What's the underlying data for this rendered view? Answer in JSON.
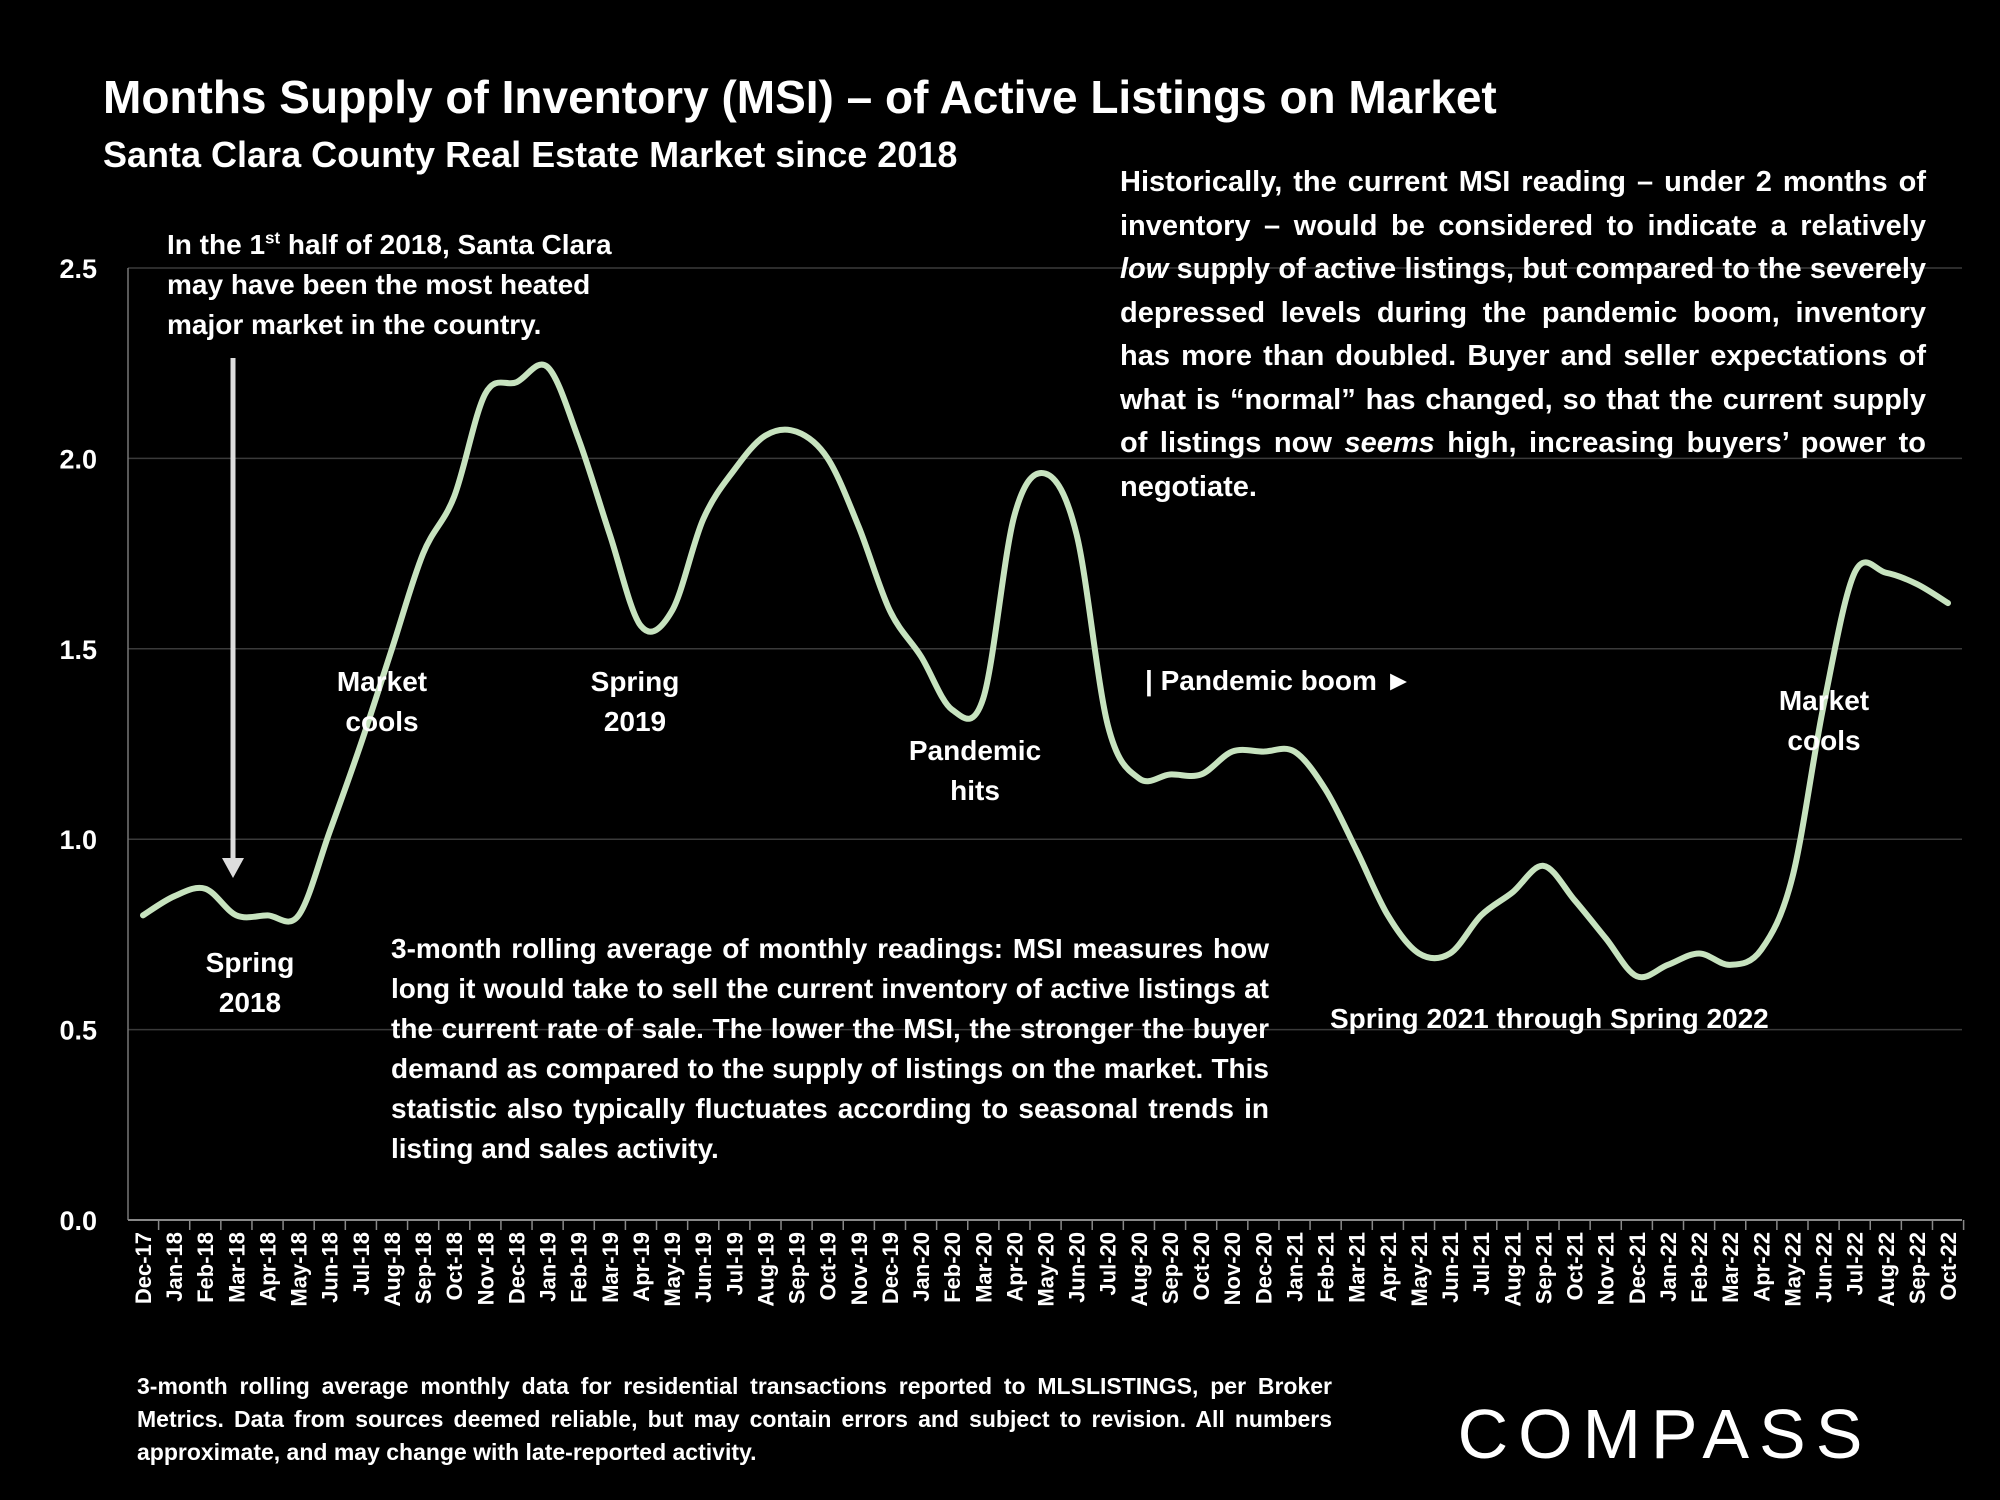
{
  "title": "Months Supply of Inventory (MSI) – of Active Listings on Market",
  "subtitle": "Santa Clara County Real Estate Market since 2018",
  "annotations": {
    "heated_pre": "In the 1",
    "heated_sup": "st",
    "heated_post": " half of 2018, Santa Clara may have been the most heated major market in the country.",
    "historic_p1": "Historically, the current MSI reading – under 2 months of inventory – would be considered to indicate a relatively ",
    "historic_low": "low",
    "historic_p2": " supply of active listings, but compared to the severely depressed levels during the pandemic boom, inventory has more than doubled. Buyer and seller expectations of what is “normal” has changed, so that the current supply of listings now ",
    "historic_seems": "seems",
    "historic_p3": " high, increasing buyers’ power to negotiate.",
    "spring2018": [
      "Spring",
      "2018"
    ],
    "market_cools_1": [
      "Market",
      "cools"
    ],
    "spring2019": [
      "Spring",
      "2019"
    ],
    "pandemic_hits": [
      "Pandemic",
      "hits"
    ],
    "pandemic_boom": "| Pandemic boom ►",
    "market_cools_2": [
      "Market",
      "cools"
    ],
    "spring2021_2022": "Spring 2021 through Spring 2022",
    "methodology": "3-month rolling average of monthly readings: MSI measures how long it would take to sell the current inventory of active listings at the current rate of sale. The lower the MSI, the stronger the buyer demand as compared to the supply of listings on the market. This statistic also typically fluctuates according to seasonal trends in listing and sales activity."
  },
  "footnote": "3-month rolling average monthly data for residential transactions reported to MLSLISTINGS, per Broker Metrics. Data from sources deemed reliable, but may contain errors and subject to revision. All numbers approximate, and may change with late-reported activity.",
  "logo_text": "COMPASS",
  "colors": {
    "background": "#000000",
    "line": "#c7e3bf",
    "text": "#ffffff",
    "grid": "#3a3a3a"
  },
  "chart_data": {
    "type": "line",
    "xlabel": "",
    "ylabel": "",
    "ylim": [
      0,
      2.5
    ],
    "yticks": [
      "0.0",
      "0.5",
      "1.0",
      "1.5",
      "2.0",
      "2.5"
    ],
    "grid": true,
    "categories": [
      "Dec-17",
      "Jan-18",
      "Feb-18",
      "Mar-18",
      "Apr-18",
      "May-18",
      "Jun-18",
      "Jul-18",
      "Aug-18",
      "Sep-18",
      "Oct-18",
      "Nov-18",
      "Dec-18",
      "Jan-19",
      "Feb-19",
      "Mar-19",
      "Apr-19",
      "May-19",
      "Jun-19",
      "Jul-19",
      "Aug-19",
      "Sep-19",
      "Oct-19",
      "Nov-19",
      "Dec-19",
      "Jan-20",
      "Feb-20",
      "Mar-20",
      "Apr-20",
      "May-20",
      "Jun-20",
      "Jul-20",
      "Aug-20",
      "Sep-20",
      "Oct-20",
      "Nov-20",
      "Dec-20",
      "Jan-21",
      "Feb-21",
      "Mar-21",
      "Apr-21",
      "May-21",
      "Jun-21",
      "Jul-21",
      "Aug-21",
      "Sep-21",
      "Oct-21",
      "Nov-21",
      "Dec-21",
      "Jan-22",
      "Feb-22",
      "Mar-22",
      "Apr-22",
      "May-22",
      "Jun-22",
      "Jul-22",
      "Aug-22",
      "Sep-22",
      "Oct-22"
    ],
    "series": [
      {
        "values": [
          0.8,
          0.85,
          0.87,
          0.8,
          0.8,
          0.8,
          1.02,
          1.25,
          1.5,
          1.75,
          1.9,
          2.17,
          2.2,
          2.24,
          2.05,
          1.8,
          1.56,
          1.6,
          1.84,
          1.97,
          2.06,
          2.07,
          2.0,
          1.82,
          1.6,
          1.48,
          1.34,
          1.37,
          1.85,
          1.96,
          1.8,
          1.3,
          1.16,
          1.17,
          1.17,
          1.23,
          1.23,
          1.23,
          1.13,
          0.97,
          0.8,
          0.7,
          0.7,
          0.8,
          0.86,
          0.93,
          0.84,
          0.74,
          0.64,
          0.67,
          0.7,
          0.67,
          0.71,
          0.9,
          1.35,
          1.7,
          1.7,
          1.67,
          1.62
        ]
      }
    ]
  }
}
